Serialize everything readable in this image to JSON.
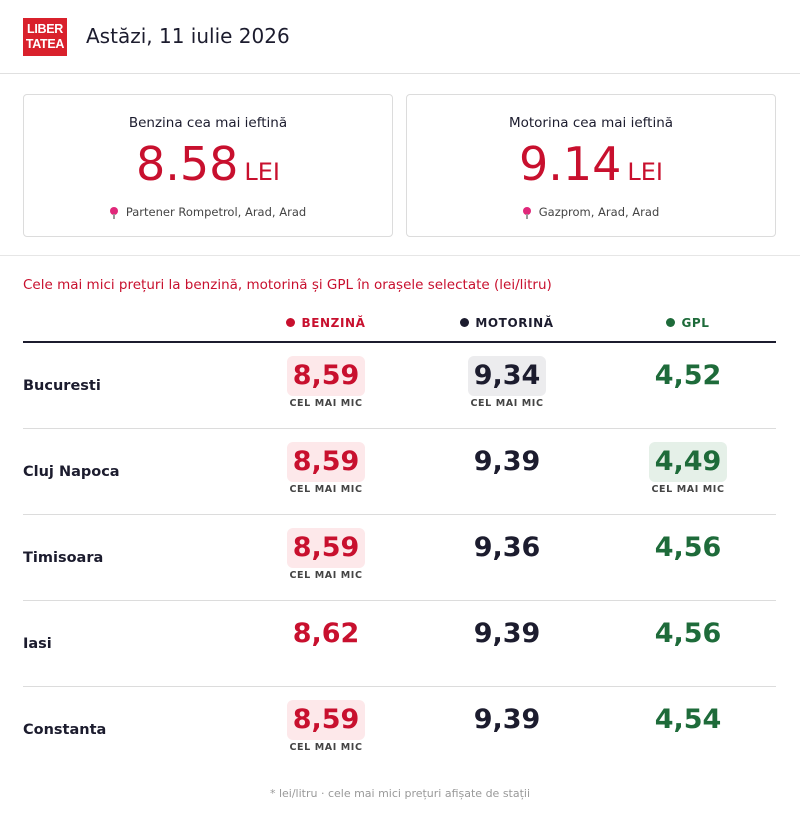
{
  "header": {
    "logo_line1": "LIBER",
    "logo_line2": "TATEA",
    "date": "Astăzi, 11 iulie 2026"
  },
  "cards": [
    {
      "title": "Benzina cea mai ieftină",
      "price": "8.58",
      "unit": "LEI",
      "location": "Partener Rompetrol, Arad, Arad"
    },
    {
      "title": "Motorina cea mai ieftină",
      "price": "9.14",
      "unit": "LEI",
      "location": "Gazprom, Arad, Arad"
    }
  ],
  "section_title": "Cele mai mici prețuri la benzină, motorină și GPL în orașele selectate (lei/litru)",
  "columns": {
    "benzina": "BENZINĂ",
    "motorina": "MOTORINĂ",
    "gpl": "GPL"
  },
  "lowest_label": "CEL MAI MIC",
  "colors": {
    "benzina": "#c8102e",
    "motorina": "#1c1c2e",
    "gpl": "#1e6b3a",
    "pin": "#e0287a"
  },
  "rows": [
    {
      "city": "Bucuresti",
      "benzina": "8,59",
      "motorina": "9,34",
      "gpl": "4,52",
      "low": {
        "benzina": true,
        "motorina": true,
        "gpl": false
      }
    },
    {
      "city": "Cluj Napoca",
      "benzina": "8,59",
      "motorina": "9,39",
      "gpl": "4,49",
      "low": {
        "benzina": true,
        "motorina": false,
        "gpl": true
      }
    },
    {
      "city": "Timisoara",
      "benzina": "8,59",
      "motorina": "9,36",
      "gpl": "4,56",
      "low": {
        "benzina": true,
        "motorina": false,
        "gpl": false
      }
    },
    {
      "city": "Iasi",
      "benzina": "8,62",
      "motorina": "9,39",
      "gpl": "4,56",
      "low": {
        "benzina": false,
        "motorina": false,
        "gpl": false
      }
    },
    {
      "city": "Constanta",
      "benzina": "8,59",
      "motorina": "9,39",
      "gpl": "4,54",
      "low": {
        "benzina": true,
        "motorina": false,
        "gpl": false
      }
    }
  ],
  "footnote": "* lei/litru · cele mai mici prețuri afișate de stații"
}
